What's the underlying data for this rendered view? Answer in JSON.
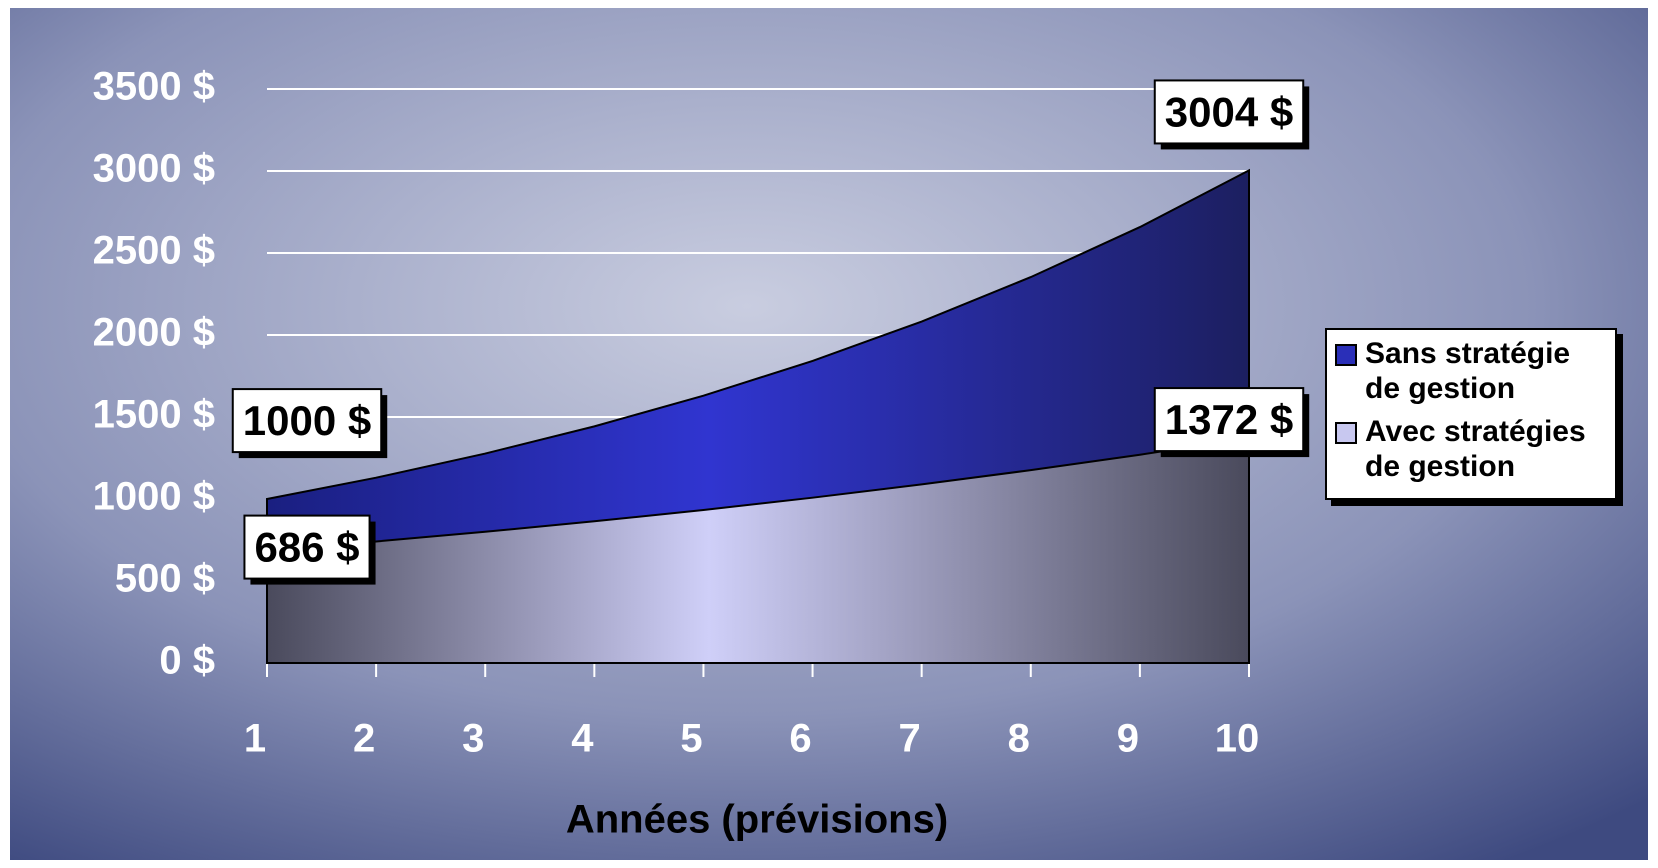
{
  "chart_data": {
    "type": "area",
    "x_label": "Années (prévisions)",
    "x": [
      1,
      2,
      3,
      4,
      5,
      6,
      7,
      8,
      9,
      10
    ],
    "xlim": [
      1,
      10
    ],
    "xticks": [
      1,
      2,
      3,
      4,
      5,
      6,
      7,
      8,
      9,
      10
    ],
    "ylim": [
      0,
      3500
    ],
    "yticks": [
      {
        "value": 0,
        "label": "0 $"
      },
      {
        "value": 500,
        "label": "500 $"
      },
      {
        "value": 1000,
        "label": "1000 $"
      },
      {
        "value": 1500,
        "label": "1500 $"
      },
      {
        "value": 2000,
        "label": "2000 $"
      },
      {
        "value": 2500,
        "label": "2500 $"
      },
      {
        "value": 3000,
        "label": "3000 $"
      },
      {
        "value": 3500,
        "label": "3500 $"
      }
    ],
    "grid": true,
    "legend": "right",
    "series": [
      {
        "name": "Sans stratégie de gestion",
        "color": "#2a2fb8",
        "values": [
          1000,
          1130,
          1277,
          1443,
          1630,
          1842,
          2082,
          2353,
          2658,
          3004
        ],
        "value_labels": [
          "1000 $",
          null,
          null,
          null,
          null,
          null,
          null,
          null,
          null,
          "3004 $"
        ]
      },
      {
        "name": "Avec stratégies de gestion",
        "color": "#c8c8f0",
        "values": [
          686,
          741,
          800,
          864,
          933,
          1008,
          1089,
          1176,
          1270,
          1372
        ],
        "value_labels": [
          "686 $",
          null,
          null,
          null,
          null,
          null,
          null,
          null,
          null,
          "1372 $"
        ]
      }
    ]
  }
}
